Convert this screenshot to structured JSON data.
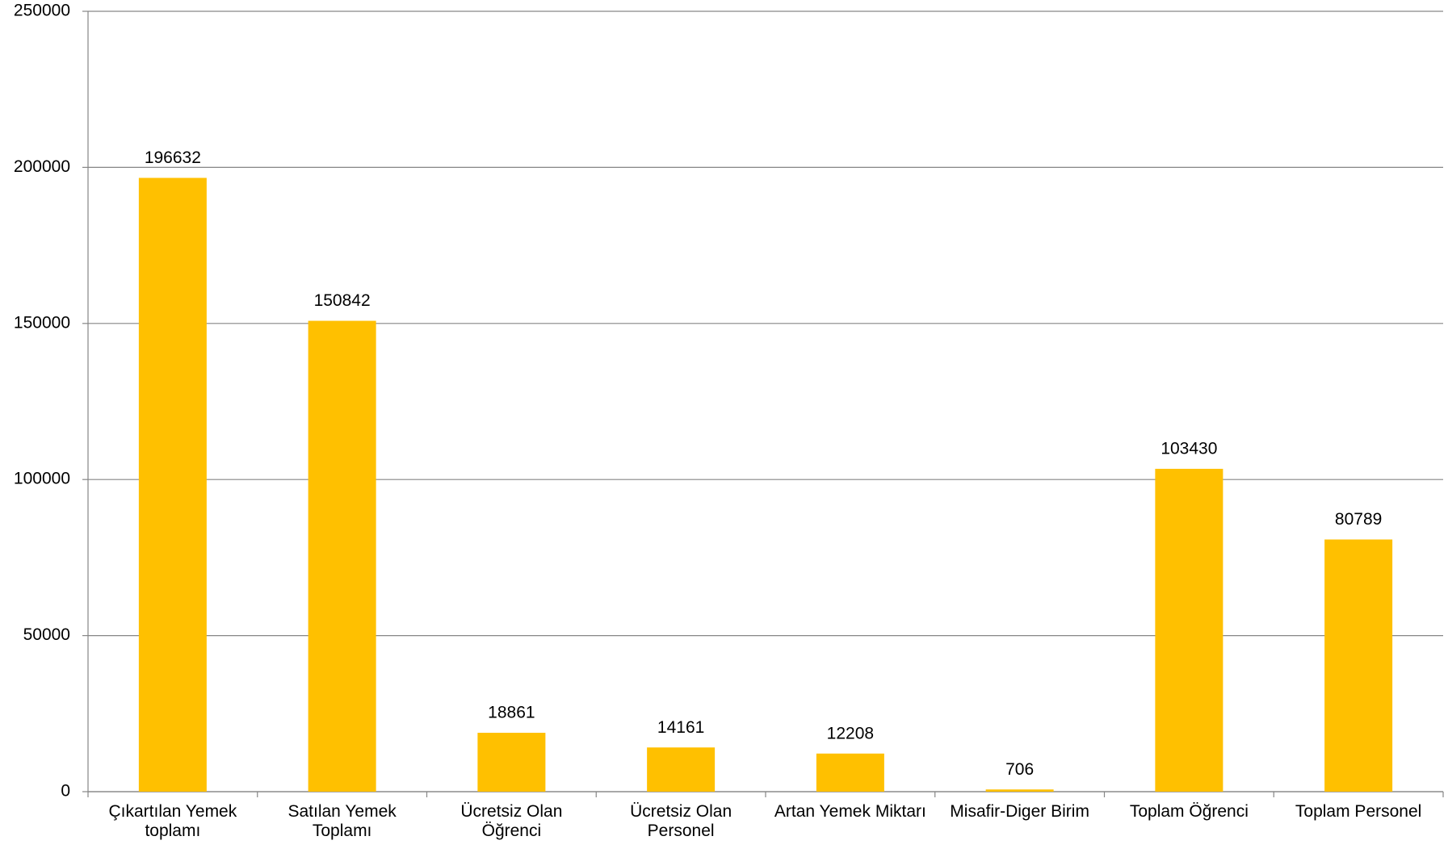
{
  "chart_data": {
    "type": "bar",
    "categories": [
      "Çıkartılan Yemek toplamı",
      "Satılan Yemek Toplamı",
      "Ücretsiz Olan Öğrenci",
      "Ücretsiz Olan Personel",
      "Artan Yemek Miktarı",
      "Misafir-Diger Birim",
      "Toplam Öğrenci",
      "Toplam Personel"
    ],
    "values": [
      196632,
      150842,
      18861,
      14161,
      12208,
      706,
      103430,
      80789
    ],
    "color": "#FFC000",
    "ylim": [
      0,
      250000
    ],
    "yticks": [
      0,
      50000,
      100000,
      150000,
      200000,
      250000
    ],
    "grid": true
  }
}
